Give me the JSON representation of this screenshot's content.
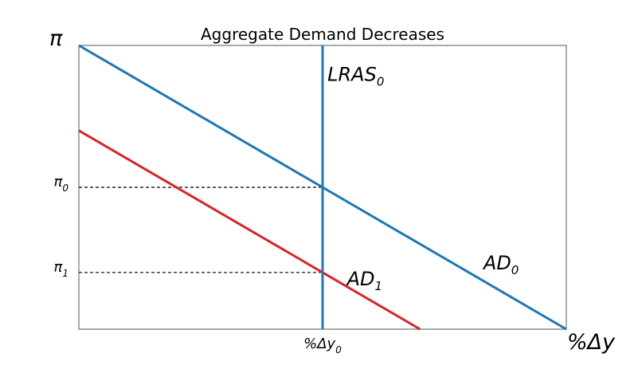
{
  "chart_data": {
    "type": "line",
    "title": "Aggregate Demand Decreases",
    "y_axis_symbol": "π",
    "x_axis_symbol": "%Δy",
    "xlim": [
      0,
      10
    ],
    "ylim": [
      0,
      10
    ],
    "ticks": {
      "y": [
        {
          "base": "π",
          "sub": "0",
          "value": 5.0
        },
        {
          "base": "π",
          "sub": "1",
          "value": 2.0
        }
      ],
      "x": [
        {
          "base": "%Δy",
          "sub": "0",
          "value": 5.0
        }
      ]
    },
    "series": [
      {
        "base": "AD",
        "sub": "0",
        "color": "#1f77b4",
        "points": [
          [
            0,
            10
          ],
          [
            10,
            0
          ]
        ],
        "label_at": [
          8.3,
          2.1
        ]
      },
      {
        "base": "AD",
        "sub": "1",
        "color": "#d62728",
        "points": [
          [
            0,
            7
          ],
          [
            7,
            0
          ]
        ],
        "label_at": [
          5.5,
          1.55
        ]
      },
      {
        "base": "LRAS",
        "sub": "0",
        "color": "#1f77b4",
        "points": [
          [
            5,
            0
          ],
          [
            5,
            10
          ]
        ],
        "label_at": [
          5.1,
          8.75
        ]
      }
    ],
    "guides": [
      {
        "y": 5.0,
        "x_end": 5.0,
        "style": "dashed"
      },
      {
        "y": 2.0,
        "x_end": 5.0,
        "style": "dashed"
      }
    ],
    "grid": false,
    "legend": "none"
  }
}
